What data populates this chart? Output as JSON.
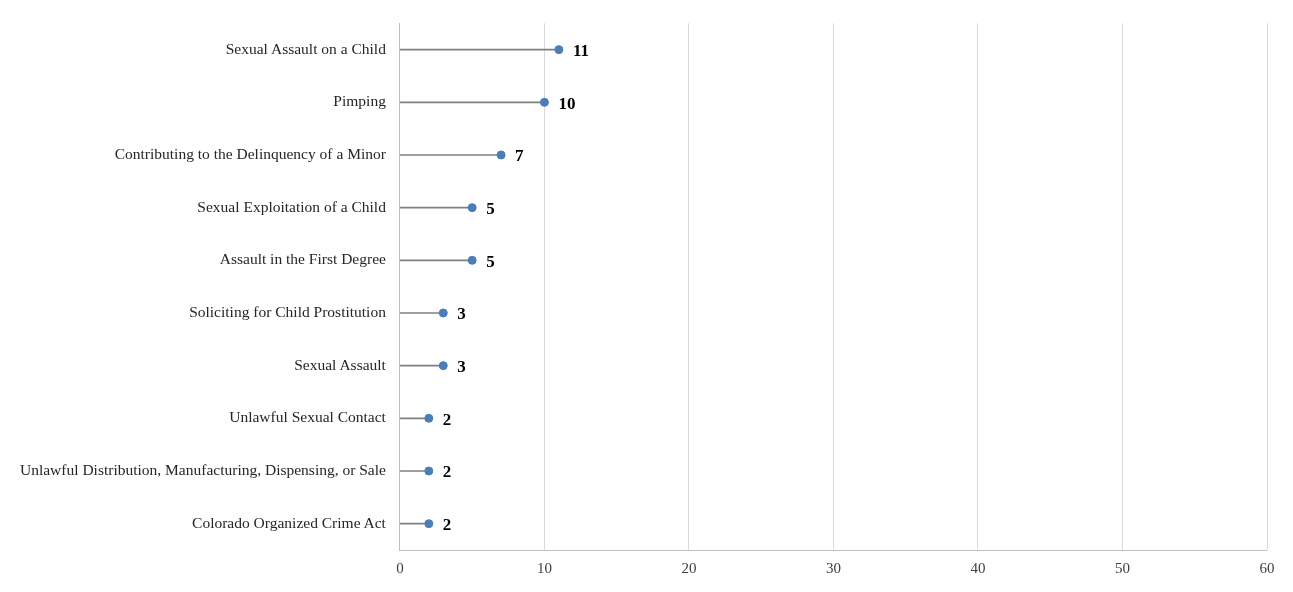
{
  "chart_data": {
    "type": "lollipop",
    "orientation": "horizontal",
    "categories": [
      "Sexual Assault on a Child",
      "Pimping",
      "Contributing to the Delinquency of a Minor",
      "Sexual Exploitation of a Child",
      "Assault in the First Degree",
      "Soliciting for Child Prostitution",
      "Sexual Assault",
      "Unlawful Sexual Contact",
      "Unlawful Distribution, Manufacturing, Dispensing, or Sale",
      "Colorado Organized Crime Act"
    ],
    "values": [
      11,
      10,
      7,
      5,
      5,
      3,
      3,
      2,
      2,
      2
    ],
    "color": "#4a7ebb",
    "marker": "circle",
    "data_labels": true,
    "xlim": [
      0,
      60
    ],
    "xticks": [
      0,
      10,
      20,
      30,
      40,
      50,
      60
    ],
    "grid": "x"
  }
}
